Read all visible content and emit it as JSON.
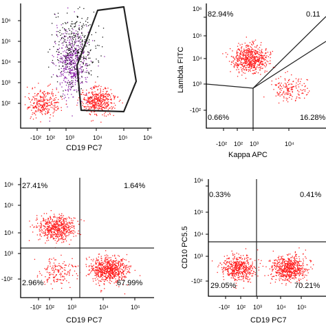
{
  "figure_title": "",
  "colors": {
    "dot_primary": "#ff1a1a",
    "dot_purple": "#8a1fa8",
    "dot_black": "#111111",
    "axis": "#000000",
    "gate": "#222222"
  },
  "chart_data": [
    {
      "type": "scatter",
      "panel": "top-left",
      "xlabel": "CD19 PC7",
      "ylabel": "",
      "x_ticks": [
        "-10²",
        "10²",
        "10³",
        "10⁴",
        "10⁵",
        "10⁶"
      ],
      "y_ticks": [
        "10⁶",
        "10⁵",
        "10⁴",
        "10³",
        "10²"
      ],
      "quadrants": [],
      "gate": "polygon",
      "populations": [
        {
          "color": "purple",
          "x_center": 2.7,
          "y_center": 3.9,
          "count": 500
        },
        {
          "color": "black",
          "x_center": 2.8,
          "y_center": 4.6,
          "count": 320
        },
        {
          "color": "red",
          "x_center": 1.5,
          "y_center": 2.2,
          "count": 280
        },
        {
          "color": "red",
          "x_center": 3.8,
          "y_center": 2.3,
          "count": 420
        }
      ]
    },
    {
      "type": "scatter",
      "panel": "top-right",
      "xlabel": "Kappa APC",
      "ylabel": "Lambda FITC",
      "x_ticks": [
        "-10²",
        "10²",
        "10³",
        "10⁴"
      ],
      "y_ticks": [
        "10⁶",
        "10⁵",
        "10⁴",
        "10³",
        "-10²"
      ],
      "quadrants": [
        {
          "position": "top-left",
          "label": "82.94%"
        },
        {
          "position": "top-right",
          "label": "0.11"
        },
        {
          "position": "bottom-left",
          "label": "0.66%"
        },
        {
          "position": "bottom-right",
          "label": "16.28%"
        }
      ],
      "populations": [
        {
          "color": "red",
          "x_center": 2.3,
          "y_center": 4.1,
          "count": 620
        },
        {
          "color": "red",
          "x_center": 3.8,
          "y_center": 2.8,
          "count": 160
        }
      ]
    },
    {
      "type": "scatter",
      "panel": "bottom-left",
      "xlabel": "CD19 PC7",
      "ylabel": "",
      "x_ticks": [
        "-10²",
        "10²",
        "10³",
        "10⁴",
        "10⁵"
      ],
      "y_ticks": [
        "10⁶",
        "10⁵",
        "10⁴",
        "10³",
        "-10²"
      ],
      "quadrants": [
        {
          "position": "top-left",
          "label": "27.41%"
        },
        {
          "position": "top-right",
          "label": "1.64%"
        },
        {
          "position": "bottom-left",
          "label": "2.96%"
        },
        {
          "position": "bottom-right",
          "label": "67.99%"
        }
      ],
      "populations": [
        {
          "color": "red",
          "x_center": 1.9,
          "y_center": 4.2,
          "count": 560
        },
        {
          "color": "red",
          "x_center": 3.9,
          "y_center": 2.4,
          "count": 700
        },
        {
          "color": "red",
          "x_center": 2.0,
          "y_center": 2.3,
          "count": 160
        }
      ]
    },
    {
      "type": "scatter",
      "panel": "bottom-right",
      "xlabel": "CD19 PC7",
      "ylabel": "CD10 PC5.5",
      "x_ticks": [
        "-10²",
        "10²",
        "10³",
        "10⁴",
        "10⁵"
      ],
      "y_ticks": [
        "10⁶",
        "10⁵",
        "10⁴",
        "10³",
        "-10²"
      ],
      "quadrants": [
        {
          "position": "top-left",
          "label": "0.33%"
        },
        {
          "position": "top-right",
          "label": "0.41%"
        },
        {
          "position": "bottom-left",
          "label": "29.05%"
        },
        {
          "position": "bottom-right",
          "label": "70.21%"
        }
      ],
      "populations": [
        {
          "color": "red",
          "x_center": 1.8,
          "y_center": 2.4,
          "count": 480
        },
        {
          "color": "red",
          "x_center": 3.9,
          "y_center": 2.4,
          "count": 620
        }
      ]
    }
  ]
}
